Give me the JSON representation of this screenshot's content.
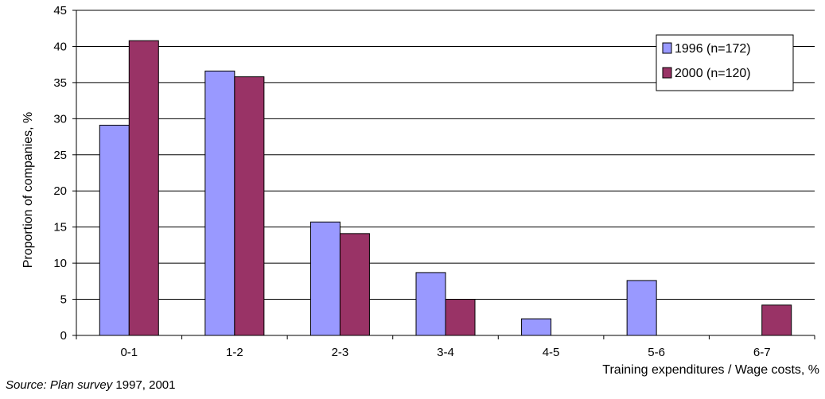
{
  "chart_data": {
    "type": "bar",
    "categories": [
      "0-1",
      "1-2",
      "2-3",
      "3-4",
      "4-5",
      "5-6",
      "6-7"
    ],
    "series": [
      {
        "name": "1996 (n=172)",
        "color": "#9999ff",
        "values": [
          29.1,
          36.6,
          15.7,
          8.7,
          2.3,
          7.6,
          0
        ]
      },
      {
        "name": "2000 (n=120)",
        "color": "#993366",
        "values": [
          40.8,
          35.8,
          14.1,
          5.0,
          0,
          0,
          4.2
        ]
      }
    ],
    "title": "",
    "xlabel": "Training expenditures / Wage costs, %",
    "ylabel": "Proportion of companies, %",
    "ylim": [
      0,
      45
    ],
    "yticks": [
      0,
      5,
      10,
      15,
      20,
      25,
      30,
      35,
      40,
      45
    ],
    "grid": true,
    "legend": "top-right"
  },
  "source": {
    "label": "Source:",
    "name": "Plan survey",
    "years": "1997, 2001"
  }
}
